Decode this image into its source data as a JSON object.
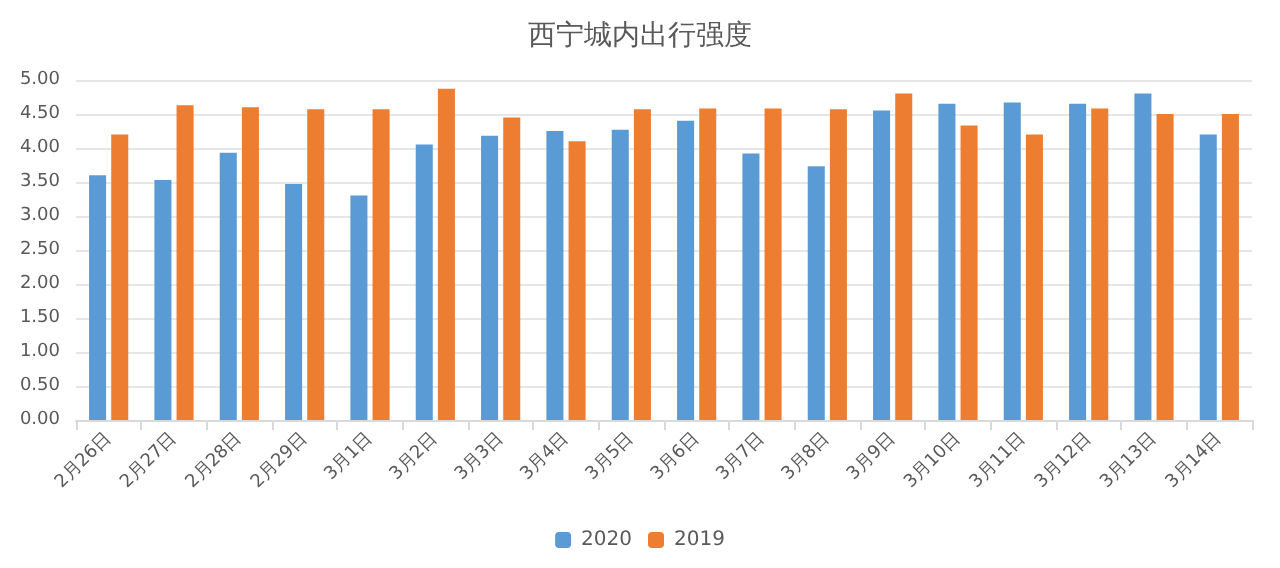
{
  "chart_data": {
    "type": "bar",
    "title": "西宁城内出行强度",
    "categories": [
      "2月26日",
      "2月27日",
      "2月28日",
      "2月29日",
      "3月1日",
      "3月2日",
      "3月3日",
      "3月4日",
      "3月5日",
      "3月6日",
      "3月7日",
      "3月8日",
      "3月9日",
      "3月10日",
      "3月11日",
      "3月12日",
      "3月13日",
      "3月14日"
    ],
    "series": [
      {
        "name": "2020",
        "color": "#5b9bd5",
        "values": [
          3.6,
          3.53,
          3.93,
          3.47,
          3.3,
          4.05,
          4.18,
          4.25,
          4.27,
          4.4,
          3.92,
          3.73,
          4.55,
          4.65,
          4.67,
          4.65,
          4.8,
          4.2
        ]
      },
      {
        "name": "2019",
        "color": "#ed7d31",
        "values": [
          4.2,
          4.63,
          4.6,
          4.57,
          4.57,
          4.87,
          4.45,
          4.1,
          4.57,
          4.58,
          4.58,
          4.57,
          4.8,
          4.33,
          4.2,
          4.58,
          4.5,
          4.5
        ]
      }
    ],
    "ylim": [
      0,
      5
    ],
    "yticks": [
      {
        "value": 0,
        "label": "0.00"
      },
      {
        "value": 0.5,
        "label": "0.50"
      },
      {
        "value": 1,
        "label": "1.00"
      },
      {
        "value": 1.5,
        "label": "1.50"
      },
      {
        "value": 2,
        "label": "2.00"
      },
      {
        "value": 2.5,
        "label": "2.50"
      },
      {
        "value": 3,
        "label": "3.00"
      },
      {
        "value": 3.5,
        "label": "3.50"
      },
      {
        "value": 4,
        "label": "4.00"
      },
      {
        "value": 4.5,
        "label": "4.50"
      },
      {
        "value": 5,
        "label": "5.00"
      }
    ],
    "grid": "y",
    "legend": "bottom"
  }
}
